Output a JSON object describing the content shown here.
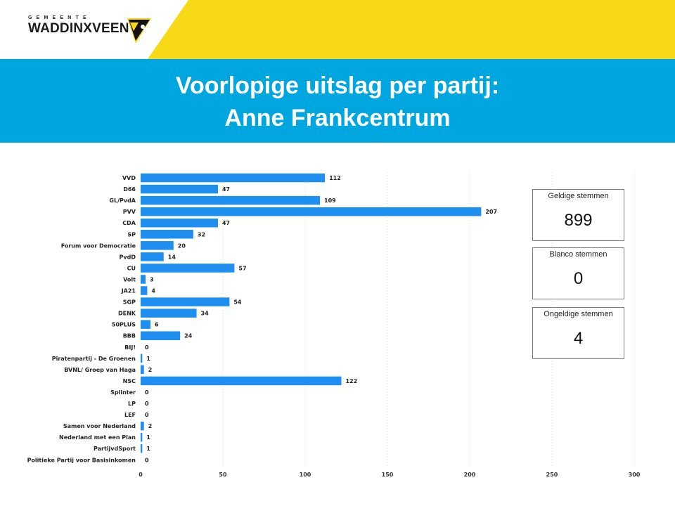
{
  "header": {
    "logo_small": "GEMEENTE",
    "logo_big": "WADDINXVEEN",
    "colors": {
      "yellow": "#f7d917",
      "blue": "#00a6e0"
    }
  },
  "banner": {
    "title_line1": "Voorlopige uitslag per partij:",
    "title_line2": "Anne Frankcentrum"
  },
  "chart_data": {
    "type": "bar",
    "orientation": "horizontal",
    "categories": [
      "VVD",
      "D66",
      "GL/PvdA",
      "PVV",
      "CDA",
      "SP",
      "Forum voor Democratie",
      "PvdD",
      "CU",
      "Volt",
      "JA21",
      "SGP",
      "DENK",
      "50PLUS",
      "BBB",
      "BIJ!",
      "Piratenpartij - De Groenen",
      "BVNL/ Groep van Haga",
      "NSC",
      "Splinter",
      "LP",
      "LEF",
      "Samen voor Nederland",
      "Nederland met een Plan",
      "PartijvdSport",
      "Politieke Partij voor Basisinkomen"
    ],
    "values": [
      112,
      47,
      109,
      207,
      47,
      32,
      20,
      14,
      57,
      3,
      4,
      54,
      34,
      6,
      24,
      0,
      1,
      2,
      122,
      0,
      0,
      0,
      2,
      1,
      1,
      0
    ],
    "xlim": [
      0,
      300
    ],
    "xticks": [
      0,
      50,
      100,
      150,
      200,
      250,
      300
    ],
    "grid": true,
    "bar_color": "#1e8ef0"
  },
  "cards": [
    {
      "label": "Geldige stemmen",
      "value": "899"
    },
    {
      "label": "Blanco stemmen",
      "value": "0"
    },
    {
      "label": "Ongeldige stemmen",
      "value": "4"
    }
  ]
}
